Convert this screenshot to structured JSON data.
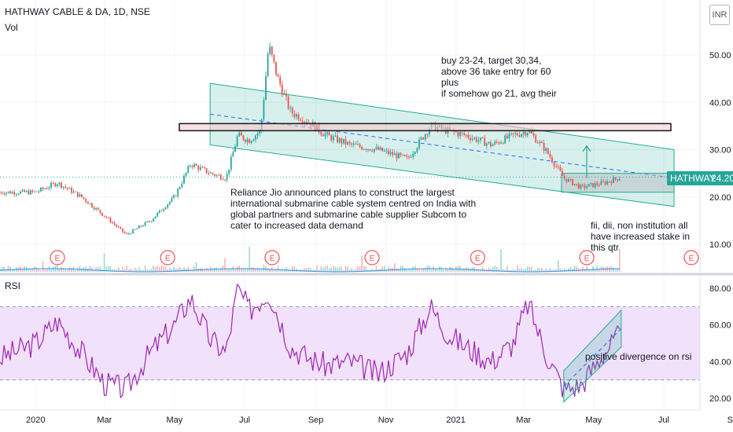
{
  "header": {
    "symbol_line": "HATHWAY CABLE & DA, 1D, NSE",
    "volume_label": "Vol",
    "rsi_label": "RSI",
    "currency": "INR"
  },
  "last_price": {
    "ticker": "HATHWAY",
    "value": "24.20"
  },
  "annotations": {
    "trade_plan": "buy 23-24, target 30,34,\nabove 36 take entry for 60\nplus\nif somehow go 21, avg their",
    "news": "Reliance Jio announced plans to construct the largest\ninternational submarine cable system centred on India with\nglobal partners and submarine cable supplier Subcom to\ncater to increased data demand",
    "holdings": "fii, dii, non institution all\nhave increased stake in\nthis qtr",
    "rsi_note": "positive divergence on rsi"
  },
  "earnings_marker": "E",
  "colors": {
    "up": "#26a69a",
    "down": "#ef5350",
    "channel": "#22ab94",
    "resistance_box": "#f8c9c9",
    "rsi_line": "#9c27b0",
    "rsi_band": "#f2e1fa"
  },
  "chart_data": [
    {
      "type": "candlestick",
      "title": "HATHWAY CABLE & DA, 1D, NSE",
      "x_ticks": [
        "2020",
        "Mar",
        "May",
        "Jul",
        "Sep",
        "Nov",
        "2021",
        "Mar",
        "May",
        "Jul",
        "Sep"
      ],
      "y_ticks": [
        10,
        20,
        30,
        40,
        50
      ],
      "y_tick_labels": [
        "10.00",
        "20.00",
        "30.00",
        "40.00",
        "50.00"
      ],
      "ylim": [
        7,
        60
      ],
      "last_price": 24.2,
      "approx_close_path": [
        [
          "2019-12-01",
          21
        ],
        [
          "2020-01-01",
          21
        ],
        [
          "2020-01-20",
          23
        ],
        [
          "2020-02-10",
          20
        ],
        [
          "2020-03-01",
          16
        ],
        [
          "2020-03-20",
          12
        ],
        [
          "2020-04-10",
          15
        ],
        [
          "2020-05-01",
          20
        ],
        [
          "2020-05-15",
          27
        ],
        [
          "2020-06-01",
          25
        ],
        [
          "2020-06-15",
          24
        ],
        [
          "2020-06-25",
          33
        ],
        [
          "2020-07-05",
          32
        ],
        [
          "2020-07-15",
          34
        ],
        [
          "2020-07-22",
          52
        ],
        [
          "2020-07-30",
          45
        ],
        [
          "2020-08-10",
          38
        ],
        [
          "2020-08-25",
          36
        ],
        [
          "2020-09-10",
          33
        ],
        [
          "2020-10-01",
          31
        ],
        [
          "2020-10-25",
          30
        ],
        [
          "2020-11-20",
          28
        ],
        [
          "2020-12-10",
          35
        ],
        [
          "2020-12-25",
          34
        ],
        [
          "2021-01-10",
          33
        ],
        [
          "2021-02-01",
          31
        ],
        [
          "2021-02-20",
          33
        ],
        [
          "2021-03-05",
          34
        ],
        [
          "2021-03-20",
          30
        ],
        [
          "2021-04-05",
          24
        ],
        [
          "2021-04-20",
          22
        ],
        [
          "2021-05-10",
          23
        ],
        [
          "2021-05-25",
          24.2
        ]
      ],
      "drawings": {
        "resistance_zone": [
          34,
          35.5
        ],
        "support_zone": [
          21,
          25
        ],
        "descending_channel": {
          "upper": [
            [
              "2020-06-01",
              44
            ],
            [
              "2021-07-10",
              30
            ]
          ],
          "lower": [
            [
              "2020-06-01",
              31
            ],
            [
              "2021-07-10",
              18
            ]
          ]
        }
      },
      "earnings_dates": [
        "2020-01-20",
        "2020-04-25",
        "2020-07-25",
        "2020-10-20",
        "2021-01-20",
        "2021-04-25",
        "2021-07-25"
      ]
    },
    {
      "type": "line",
      "title": "RSI",
      "y_ticks": [
        20,
        40,
        60,
        80
      ],
      "y_tick_labels": [
        "20.00",
        "40.00",
        "60.00",
        "80.00"
      ],
      "ylim": [
        16,
        85
      ],
      "band": [
        30,
        70
      ],
      "approx_values": [
        [
          "2019-12-01",
          42
        ],
        [
          "2020-01-01",
          50
        ],
        [
          "2020-01-20",
          62
        ],
        [
          "2020-02-10",
          45
        ],
        [
          "2020-03-01",
          28
        ],
        [
          "2020-03-20",
          25
        ],
        [
          "2020-04-10",
          45
        ],
        [
          "2020-05-01",
          60
        ],
        [
          "2020-05-15",
          75
        ],
        [
          "2020-06-01",
          52
        ],
        [
          "2020-06-15",
          45
        ],
        [
          "2020-06-25",
          80
        ],
        [
          "2020-07-05",
          68
        ],
        [
          "2020-07-22",
          78
        ],
        [
          "2020-08-10",
          48
        ],
        [
          "2020-08-25",
          42
        ],
        [
          "2020-09-10",
          38
        ],
        [
          "2020-10-01",
          40
        ],
        [
          "2020-10-25",
          33
        ],
        [
          "2020-11-20",
          45
        ],
        [
          "2020-12-10",
          70
        ],
        [
          "2020-12-25",
          55
        ],
        [
          "2021-01-10",
          48
        ],
        [
          "2021-02-01",
          40
        ],
        [
          "2021-02-20",
          50
        ],
        [
          "2021-03-05",
          72
        ],
        [
          "2021-03-20",
          45
        ],
        [
          "2021-04-05",
          25
        ],
        [
          "2021-04-20",
          27
        ],
        [
          "2021-05-10",
          45
        ],
        [
          "2021-05-25",
          55
        ]
      ],
      "drawings": {
        "ascending_channel": {
          "upper": [
            [
              "2021-04-05",
              35
            ],
            [
              "2021-05-25",
              68
            ]
          ],
          "lower": [
            [
              "2021-04-05",
              18
            ],
            [
              "2021-05-25",
              48
            ]
          ]
        }
      }
    }
  ]
}
